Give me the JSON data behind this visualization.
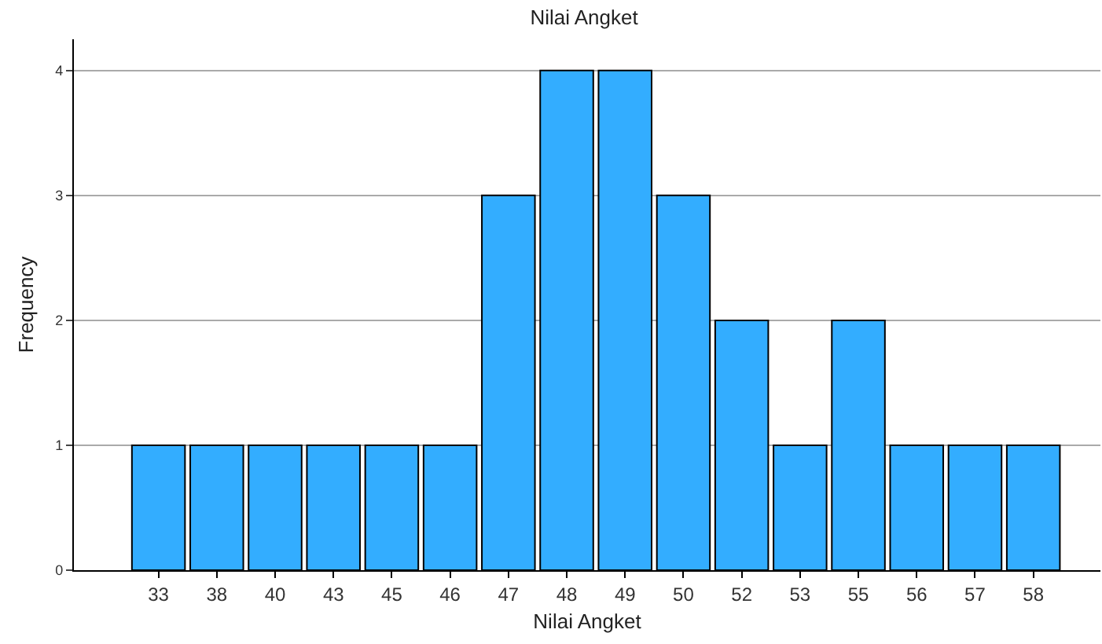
{
  "chart_data": {
    "type": "bar",
    "title": "Nilai Angket",
    "xlabel": "Nilai Angket",
    "ylabel": "Frequency",
    "categories": [
      "33",
      "38",
      "40",
      "43",
      "45",
      "46",
      "47",
      "48",
      "49",
      "50",
      "52",
      "53",
      "55",
      "56",
      "57",
      "58"
    ],
    "values": [
      1,
      1,
      1,
      1,
      1,
      1,
      3,
      4,
      4,
      3,
      2,
      1,
      2,
      1,
      1,
      1
    ],
    "color": "#33adff",
    "ylim": [
      0,
      4.25
    ],
    "yticks": [
      0,
      1,
      2,
      3,
      4
    ],
    "grid": "y"
  }
}
